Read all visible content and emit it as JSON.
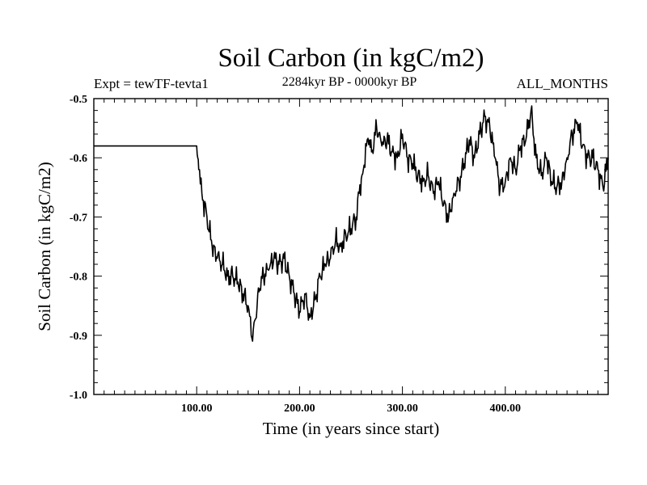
{
  "chart_data": {
    "type": "line",
    "title": "Soil Carbon (in kgC/m2)",
    "subtitle_left": "Expt = tewTF-tevta1",
    "subtitle_center": "2284kyr BP - 0000kyr BP",
    "subtitle_right": "ALL_MONTHS",
    "xlabel": "Time (in years since start)",
    "ylabel": "Soil Carbon (in kgC/m2)",
    "xlim": [
      0,
      500
    ],
    "ylim": [
      -1.0,
      -0.5
    ],
    "x_ticks": [
      100,
      200,
      300,
      400
    ],
    "x_tick_labels": [
      "100.00",
      "200.00",
      "300.00",
      "400.00"
    ],
    "y_ticks": [
      -0.5,
      -0.6,
      -0.7,
      -0.8,
      -0.9,
      -1.0
    ],
    "y_tick_labels": [
      "-0.5",
      "-0.6",
      "-0.7",
      "-0.8",
      "-0.9",
      "-1.0"
    ],
    "grid": false,
    "legend": "none",
    "series": [
      {
        "name": "Soil Carbon",
        "color": "#000000",
        "x": [
          0,
          20,
          40,
          60,
          80,
          100,
          101,
          102,
          105,
          110,
          115,
          120,
          125,
          130,
          135,
          140,
          145,
          150,
          153,
          155,
          158,
          160,
          165,
          170,
          175,
          180,
          185,
          190,
          195,
          200,
          205,
          210,
          215,
          220,
          225,
          230,
          235,
          240,
          245,
          250,
          255,
          258,
          262,
          265,
          268,
          270,
          275,
          280,
          285,
          290,
          295,
          300,
          305,
          310,
          315,
          320,
          325,
          330,
          335,
          340,
          345,
          350,
          355,
          360,
          365,
          370,
          375,
          380,
          385,
          390,
          395,
          400,
          405,
          410,
          415,
          420,
          425,
          430,
          435,
          440,
          445,
          450,
          455,
          460,
          465,
          470,
          475,
          480,
          485,
          490,
          495,
          500
        ],
        "values": [
          -0.58,
          -0.58,
          -0.58,
          -0.58,
          -0.58,
          -0.58,
          -0.6,
          -0.62,
          -0.66,
          -0.7,
          -0.75,
          -0.77,
          -0.78,
          -0.8,
          -0.8,
          -0.81,
          -0.83,
          -0.85,
          -0.9,
          -0.89,
          -0.87,
          -0.82,
          -0.8,
          -0.79,
          -0.77,
          -0.78,
          -0.77,
          -0.8,
          -0.83,
          -0.86,
          -0.83,
          -0.87,
          -0.84,
          -0.8,
          -0.78,
          -0.77,
          -0.74,
          -0.75,
          -0.73,
          -0.72,
          -0.7,
          -0.66,
          -0.62,
          -0.58,
          -0.57,
          -0.59,
          -0.55,
          -0.58,
          -0.57,
          -0.59,
          -0.6,
          -0.56,
          -0.6,
          -0.61,
          -0.63,
          -0.64,
          -0.63,
          -0.66,
          -0.64,
          -0.68,
          -0.7,
          -0.66,
          -0.64,
          -0.61,
          -0.57,
          -0.6,
          -0.56,
          -0.53,
          -0.55,
          -0.6,
          -0.65,
          -0.64,
          -0.6,
          -0.62,
          -0.58,
          -0.57,
          -0.52,
          -0.6,
          -0.63,
          -0.6,
          -0.64,
          -0.65,
          -0.64,
          -0.6,
          -0.56,
          -0.54,
          -0.58,
          -0.6,
          -0.6,
          -0.62,
          -0.65,
          -0.6
        ]
      }
    ]
  }
}
